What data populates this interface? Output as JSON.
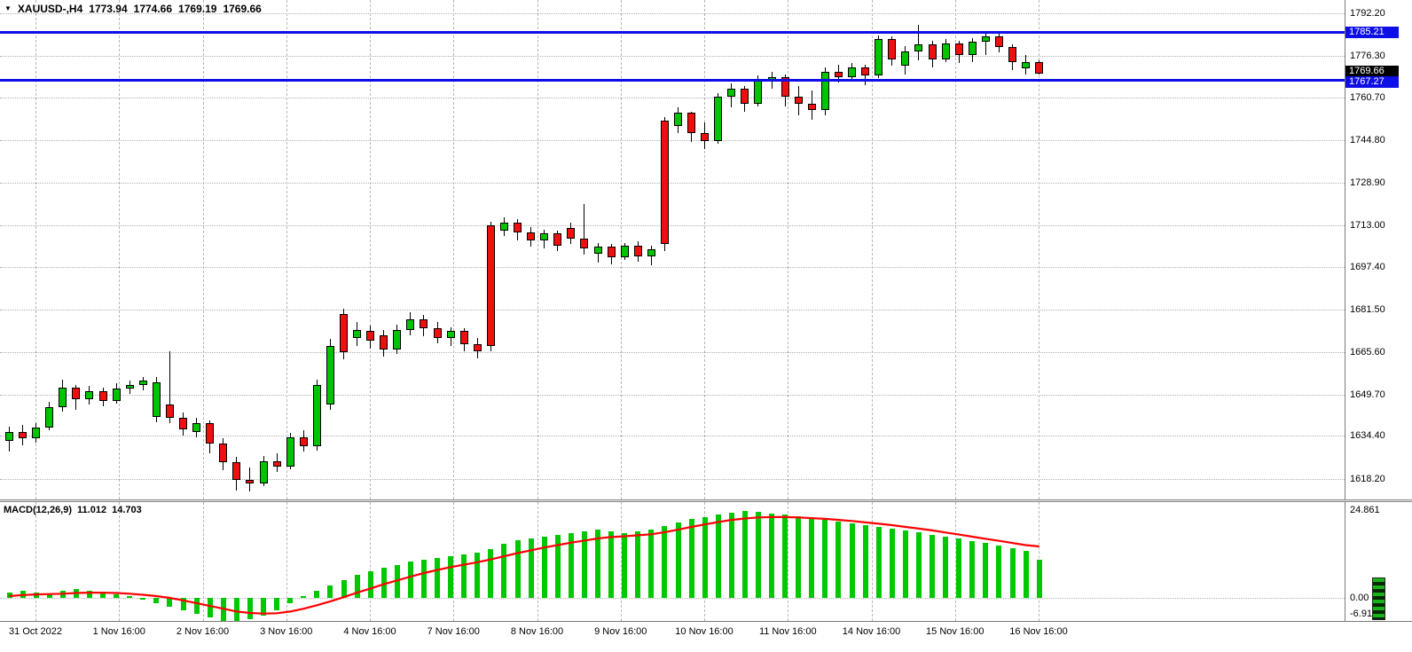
{
  "icons": {
    "dropdown": "▼"
  },
  "chart_header": {
    "symbol_period": "XAUUSD-,H4",
    "open": "1773.94",
    "high": "1774.66",
    "low": "1769.19",
    "close": "1769.66"
  },
  "macd_panel": {
    "name": "MACD(12,26,9)",
    "value_main": "11.012",
    "value_signal": "14.703"
  },
  "price_axis": {
    "badges": [
      {
        "text": "1785.21",
        "price": 1785.21,
        "style": "hline"
      },
      {
        "text": "1769.66",
        "price": 1769.66,
        "style": "last"
      },
      {
        "text": "1767.27",
        "price": 1767.27,
        "style": "hline"
      }
    ]
  },
  "colors": {
    "bull": "#00C400",
    "bear": "#EE0F0F",
    "wick": "#000000",
    "hline": "#0E0EE6",
    "badge_last_bg": "#000000",
    "badge_hline_bg": "#0E0EE6",
    "histogram": "#00C800",
    "signal": "#FF0000"
  },
  "chart_data": [
    {
      "type": "candlestick",
      "symbol": "XAUUSD-",
      "timeframe": "H4",
      "title": "XAUUSD-,H4",
      "y_axis_labels": [
        "1792.20",
        "1776.30",
        "1760.70",
        "1744.80",
        "1728.90",
        "1713.00",
        "1697.40",
        "1681.50",
        "1665.60",
        "1649.70",
        "1634.40",
        "1618.20"
      ],
      "x_axis_labels": [
        "31 Oct 2022",
        "1 Nov 16:00",
        "2 Nov 16:00",
        "3 Nov 16:00",
        "4 Nov 16:00",
        "7 Nov 16:00",
        "8 Nov 16:00",
        "9 Nov 16:00",
        "10 Nov 16:00",
        "11 Nov 16:00",
        "14 Nov 16:00",
        "15 Nov 16:00",
        "16 Nov 16:00"
      ],
      "horizontal_lines": [
        1785.21,
        1767.27
      ],
      "last_price": 1769.66,
      "ohlc": [
        [
          1632.5,
          1638.0,
          1628.5,
          1636.0
        ],
        [
          1636.0,
          1638.5,
          1631.0,
          1633.5
        ],
        [
          1633.5,
          1639.0,
          1632.0,
          1637.5
        ],
        [
          1637.5,
          1647.0,
          1636.5,
          1645.0
        ],
        [
          1645.0,
          1655.5,
          1643.5,
          1652.5
        ],
        [
          1652.5,
          1653.5,
          1644.0,
          1648.0
        ],
        [
          1648.0,
          1653.0,
          1646.0,
          1651.0
        ],
        [
          1651.0,
          1652.5,
          1645.5,
          1647.5
        ],
        [
          1647.5,
          1654.0,
          1646.5,
          1652.0
        ],
        [
          1652.0,
          1655.0,
          1650.0,
          1653.5
        ],
        [
          1653.5,
          1656.5,
          1651.5,
          1655.0
        ],
        [
          1641.5,
          1656.5,
          1639.5,
          1654.5
        ],
        [
          1646.0,
          1666.0,
          1639.0,
          1641.0
        ],
        [
          1641.0,
          1643.0,
          1634.5,
          1637.0
        ],
        [
          1636.0,
          1641.0,
          1634.0,
          1639.0
        ],
        [
          1639.0,
          1640.0,
          1628.0,
          1631.5
        ],
        [
          1631.5,
          1633.5,
          1621.5,
          1624.5
        ],
        [
          1624.5,
          1626.5,
          1614.0,
          1618.0
        ],
        [
          1618.0,
          1622.5,
          1613.5,
          1616.5
        ],
        [
          1616.5,
          1627.0,
          1615.5,
          1625.0
        ],
        [
          1625.0,
          1628.0,
          1621.0,
          1623.0
        ],
        [
          1623.0,
          1635.5,
          1622.0,
          1634.0
        ],
        [
          1634.0,
          1636.5,
          1628.5,
          1630.5
        ],
        [
          1630.5,
          1655.5,
          1629.0,
          1653.5
        ],
        [
          1646.0,
          1670.5,
          1644.0,
          1668.0
        ],
        [
          1680.0,
          1682.0,
          1663.0,
          1665.5
        ],
        [
          1671.0,
          1677.0,
          1668.0,
          1674.0
        ],
        [
          1673.5,
          1675.5,
          1667.0,
          1670.0
        ],
        [
          1672.0,
          1674.0,
          1664.0,
          1666.5
        ],
        [
          1666.5,
          1676.0,
          1665.0,
          1674.0
        ],
        [
          1674.0,
          1680.5,
          1672.0,
          1678.0
        ],
        [
          1678.0,
          1679.5,
          1671.5,
          1674.5
        ],
        [
          1674.5,
          1677.0,
          1669.0,
          1671.0
        ],
        [
          1671.0,
          1675.0,
          1668.0,
          1673.5
        ],
        [
          1673.5,
          1674.5,
          1666.0,
          1668.5
        ],
        [
          1668.5,
          1671.0,
          1663.5,
          1666.0
        ],
        [
          1713.0,
          1714.5,
          1666.0,
          1668.0
        ],
        [
          1711.0,
          1716.0,
          1709.0,
          1714.0
        ],
        [
          1714.0,
          1715.5,
          1707.5,
          1710.5
        ],
        [
          1710.5,
          1712.5,
          1705.0,
          1707.5
        ],
        [
          1707.5,
          1711.5,
          1704.5,
          1710.0
        ],
        [
          1710.0,
          1711.0,
          1703.5,
          1705.5
        ],
        [
          1712.0,
          1714.0,
          1706.0,
          1708.0
        ],
        [
          1708.0,
          1721.0,
          1702.0,
          1704.5
        ],
        [
          1702.5,
          1706.5,
          1699.0,
          1705.0
        ],
        [
          1705.0,
          1706.0,
          1698.5,
          1701.0
        ],
        [
          1701.0,
          1706.5,
          1700.0,
          1705.5
        ],
        [
          1705.5,
          1707.0,
          1699.5,
          1701.5
        ],
        [
          1701.5,
          1705.5,
          1698.0,
          1704.0
        ],
        [
          1752.0,
          1753.5,
          1703.5,
          1706.0
        ],
        [
          1750.0,
          1757.0,
          1747.5,
          1755.0
        ],
        [
          1755.0,
          1755.5,
          1744.0,
          1747.5
        ],
        [
          1747.5,
          1751.5,
          1741.5,
          1744.5
        ],
        [
          1744.5,
          1762.5,
          1743.5,
          1761.0
        ],
        [
          1761.0,
          1766.0,
          1757.0,
          1764.0
        ],
        [
          1764.0,
          1765.0,
          1755.5,
          1758.5
        ],
        [
          1758.5,
          1769.0,
          1757.5,
          1767.0
        ],
        [
          1767.0,
          1770.5,
          1764.0,
          1768.5
        ],
        [
          1768.5,
          1769.5,
          1757.5,
          1761.0
        ],
        [
          1761.0,
          1765.0,
          1754.0,
          1758.5
        ],
        [
          1758.5,
          1763.5,
          1752.5,
          1756.0
        ],
        [
          1756.0,
          1772.0,
          1754.0,
          1770.5
        ],
        [
          1770.5,
          1773.0,
          1766.5,
          1768.5
        ],
        [
          1768.5,
          1773.5,
          1767.5,
          1772.0
        ],
        [
          1772.0,
          1773.0,
          1765.5,
          1769.0
        ],
        [
          1769.0,
          1784.0,
          1768.0,
          1782.5
        ],
        [
          1782.5,
          1783.5,
          1772.5,
          1775.0
        ],
        [
          1772.5,
          1780.0,
          1769.5,
          1778.0
        ],
        [
          1778.0,
          1788.0,
          1774.5,
          1780.5
        ],
        [
          1780.5,
          1782.0,
          1772.0,
          1775.0
        ],
        [
          1775.0,
          1782.5,
          1774.0,
          1781.0
        ],
        [
          1781.0,
          1782.0,
          1773.5,
          1776.5
        ],
        [
          1776.5,
          1783.0,
          1774.0,
          1781.5
        ],
        [
          1781.5,
          1785.5,
          1776.5,
          1783.5
        ],
        [
          1783.5,
          1784.5,
          1777.5,
          1779.5
        ],
        [
          1779.5,
          1780.5,
          1771.0,
          1774.0
        ],
        [
          1771.5,
          1776.5,
          1769.5,
          1773.94
        ],
        [
          1773.94,
          1774.66,
          1769.19,
          1769.66
        ]
      ]
    },
    {
      "type": "bar",
      "name": "MACD(12,26,9) histogram",
      "y_axis_labels": [
        "24.861",
        "0.00",
        "-6.91"
      ],
      "values": [
        1.5,
        2.0,
        1.5,
        1.0,
        2.0,
        2.5,
        2.0,
        1.5,
        1.0,
        0.5,
        -0.5,
        -1.5,
        -2.5,
        -3.5,
        -4.5,
        -5.5,
        -6.5,
        -6.91,
        -6.0,
        -5.0,
        -3.5,
        -1.5,
        0.5,
        2.0,
        3.5,
        5.0,
        6.5,
        7.5,
        8.5,
        9.5,
        10.5,
        11.0,
        11.5,
        12.0,
        12.5,
        13.0,
        14.0,
        15.5,
        16.5,
        17.0,
        17.5,
        18.0,
        18.5,
        19.0,
        19.5,
        19.0,
        18.5,
        19.0,
        19.5,
        20.5,
        21.5,
        22.5,
        23.2,
        23.8,
        24.3,
        24.861,
        24.6,
        24.2,
        23.8,
        23.3,
        22.8,
        22.3,
        21.8,
        21.3,
        20.8,
        20.3,
        19.8,
        19.3,
        18.7,
        18.1,
        17.5,
        16.9,
        16.3,
        15.7,
        15.0,
        14.3,
        13.4,
        11.012
      ]
    },
    {
      "type": "line",
      "name": "MACD signal",
      "values": [
        0.5,
        0.8,
        1.0,
        1.1,
        1.2,
        1.4,
        1.5,
        1.5,
        1.4,
        1.2,
        0.9,
        0.5,
        0.0,
        -0.7,
        -1.5,
        -2.3,
        -3.1,
        -3.9,
        -4.3,
        -4.5,
        -4.4,
        -3.9,
        -3.1,
        -2.1,
        -1.0,
        0.2,
        1.5,
        2.7,
        3.9,
        5.0,
        6.1,
        7.1,
        8.0,
        8.8,
        9.5,
        10.2,
        11.0,
        11.9,
        12.8,
        13.6,
        14.4,
        15.1,
        15.8,
        16.4,
        17.0,
        17.4,
        17.6,
        17.9,
        18.2,
        18.8,
        19.5,
        20.3,
        21.0,
        21.7,
        22.3,
        22.7,
        23.0,
        23.1,
        23.1,
        23.0,
        22.8,
        22.6,
        22.3,
        22.0,
        21.6,
        21.2,
        20.8,
        20.3,
        19.8,
        19.3,
        18.7,
        18.1,
        17.5,
        16.9,
        16.3,
        15.7,
        15.1,
        14.703
      ]
    }
  ]
}
